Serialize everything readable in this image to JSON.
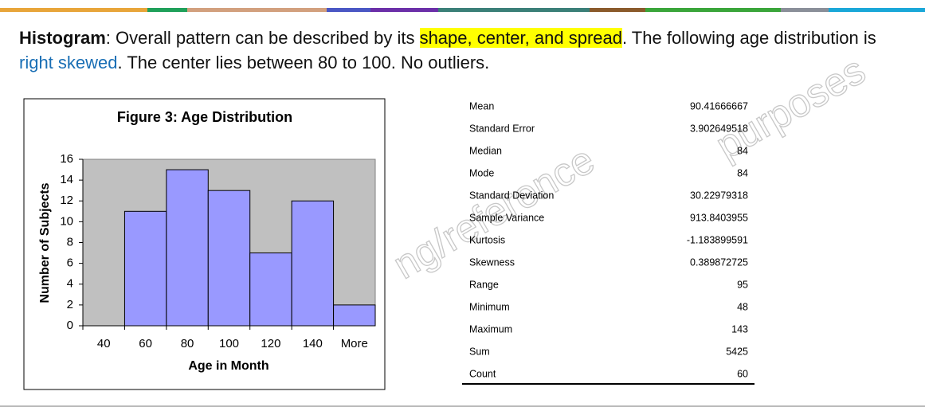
{
  "intro": {
    "term": "Histogram",
    "part1": ": Overall pattern can be described by its ",
    "highlight": "shape, center, and spread",
    "part2": ". The following age distribution is ",
    "emphasis": "right skewed",
    "part3": ". The center lies between 80 to 100. No outliers."
  },
  "watermark": [
    "ng/reference",
    "purposes"
  ],
  "chart_data": {
    "type": "bar",
    "title": "Figure 3:  Age Distribution",
    "x_label": "Age in Month",
    "y_label": "Number of Subjects",
    "categories": [
      "40",
      "60",
      "80",
      "100",
      "120",
      "140",
      "More"
    ],
    "values": [
      0,
      11,
      15,
      13,
      7,
      12,
      2
    ],
    "color": "#9999ff",
    "ylim": [
      0,
      16
    ],
    "yticks": [
      0,
      2,
      4,
      6,
      8,
      10,
      12,
      14,
      16
    ],
    "grid": false
  },
  "table": {
    "rows": [
      [
        "Mean",
        90.41666667
      ],
      [
        "Standard Error",
        3.902649518
      ],
      [
        "Median",
        84
      ],
      [
        "Mode",
        84
      ],
      [
        "Standard Deviation",
        30.22979318
      ],
      [
        "Sample Variance",
        913.8403955
      ],
      [
        "Kurtosis",
        -1.183899591
      ],
      [
        "Skewness",
        0.389872725
      ],
      [
        "Range",
        95
      ],
      [
        "Minimum",
        48
      ],
      [
        "Maximum",
        143
      ],
      [
        "Sum",
        5425
      ],
      [
        "Count",
        60
      ]
    ]
  }
}
